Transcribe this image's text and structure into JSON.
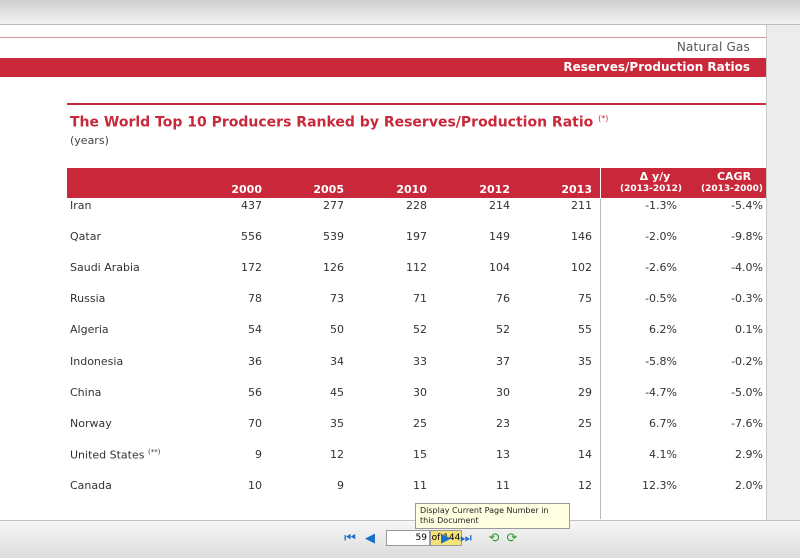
{
  "document": {
    "section_label": "Natural Gas",
    "banner_title": "Reserves/Production Ratios",
    "table_title": "The World Top 10 Producers Ranked by Reserves/Production Ratio",
    "table_title_note": "(*)",
    "table_unit": "(years)"
  },
  "table": {
    "years": [
      "2000",
      "2005",
      "2010",
      "2012",
      "2013"
    ],
    "change_header": "Δ y/y",
    "change_period": "(2013-2012)",
    "cagr_header": "CAGR",
    "cagr_period": "(2013-2000)",
    "rows": [
      {
        "country": "Iran",
        "note": "",
        "values": [
          "437",
          "277",
          "228",
          "214",
          "211"
        ],
        "change": "-1.3%",
        "cagr": "-5.4%"
      },
      {
        "country": "Qatar",
        "note": "",
        "values": [
          "556",
          "539",
          "197",
          "149",
          "146"
        ],
        "change": "-2.0%",
        "cagr": "-9.8%"
      },
      {
        "country": "Saudi Arabia",
        "note": "",
        "values": [
          "172",
          "126",
          "112",
          "104",
          "102"
        ],
        "change": "-2.6%",
        "cagr": "-4.0%"
      },
      {
        "country": "Russia",
        "note": "",
        "values": [
          "78",
          "73",
          "71",
          "76",
          "75"
        ],
        "change": "-0.5%",
        "cagr": "-0.3%"
      },
      {
        "country": "Algeria",
        "note": "",
        "values": [
          "54",
          "50",
          "52",
          "52",
          "55"
        ],
        "change": "6.2%",
        "cagr": "0.1%"
      },
      {
        "country": "Indonesia",
        "note": "",
        "values": [
          "36",
          "34",
          "33",
          "37",
          "35"
        ],
        "change": "-5.8%",
        "cagr": "-0.2%"
      },
      {
        "country": "China",
        "note": "",
        "values": [
          "56",
          "45",
          "30",
          "30",
          "29"
        ],
        "change": "-4.7%",
        "cagr": "-5.0%"
      },
      {
        "country": "Norway",
        "note": "",
        "values": [
          "70",
          "35",
          "25",
          "23",
          "25"
        ],
        "change": "6.7%",
        "cagr": "-7.6%"
      },
      {
        "country": "United States",
        "note": "(**)",
        "values": [
          "9",
          "12",
          "15",
          "13",
          "14"
        ],
        "change": "4.1%",
        "cagr": "2.9%"
      },
      {
        "country": "Canada",
        "note": "",
        "values": [
          "10",
          "9",
          "11",
          "11",
          "12"
        ],
        "change": "12.3%",
        "cagr": "2.0%"
      }
    ]
  },
  "viewer": {
    "tooltip": "Display Current Page Number in this Document",
    "current_page": "59",
    "page_total": "of 144",
    "icons": [
      "first-page-icon",
      "previous-page-icon",
      "next-page-icon",
      "last-page-icon",
      "go-back-icon",
      "go-forward-icon"
    ]
  },
  "colors": {
    "accent": "#c8283a"
  }
}
